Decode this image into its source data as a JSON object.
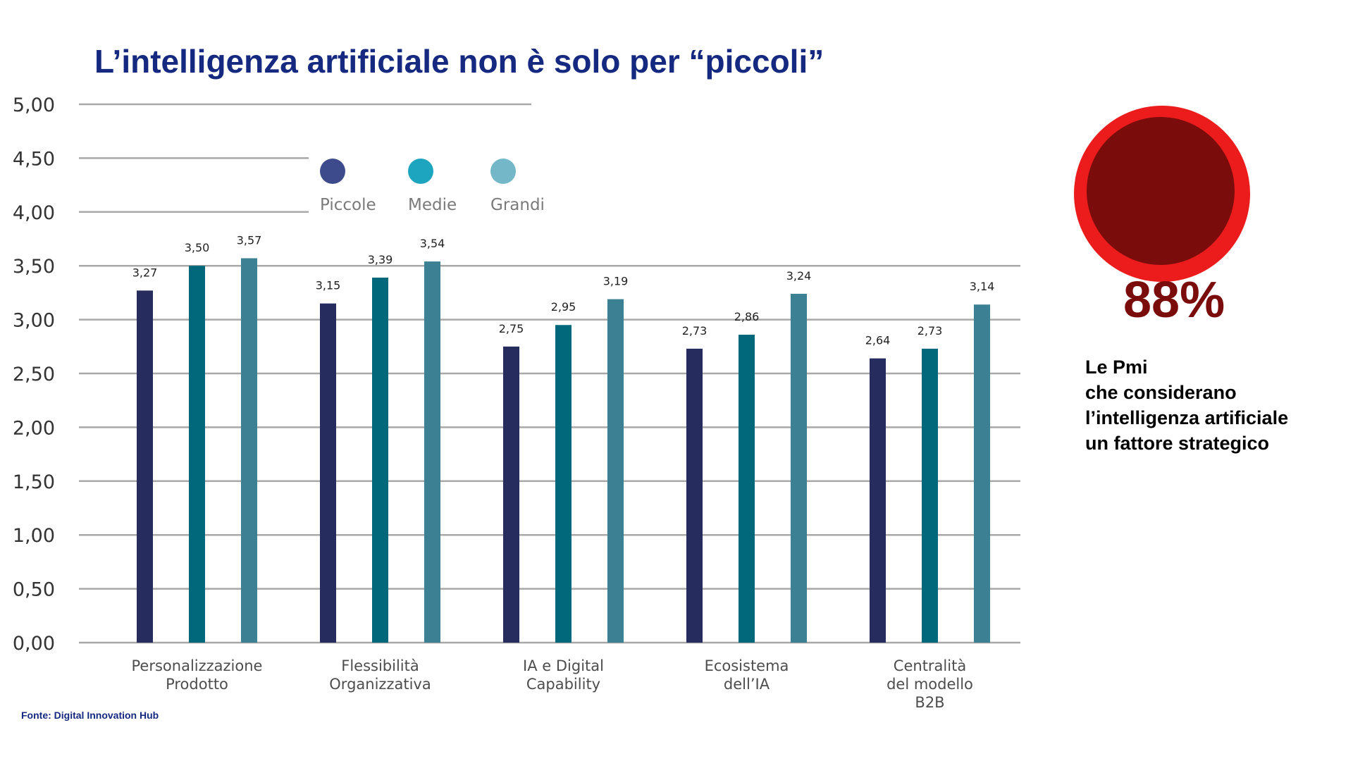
{
  "title": "L’intelligenza artificiale non è solo per “piccoli”",
  "source": "Fonte: Digital Innovation Hub",
  "stat": {
    "value": "88%",
    "caption_lines": [
      "Le Pmi",
      "che considerano",
      "l’intelligenza artificiale",
      "un fattore strategico"
    ]
  },
  "colors": {
    "title": "#14297f",
    "badge_outer": "#ec1c1c",
    "badge_inner": "#7a0c0c",
    "legend_piccole": "#3d4b8c",
    "legend_medie": "#1da4bf",
    "legend_grandi": "#74b7c9",
    "bar_piccole": "#262c5d",
    "bar_medie": "#00687a",
    "bar_grandi": "#3c8193"
  },
  "chart_data": {
    "type": "bar",
    "title": "",
    "xlabel": "",
    "ylabel": "",
    "ylim": [
      0,
      5
    ],
    "yticks": [
      "0,00",
      "0,50",
      "1,00",
      "1,50",
      "2,00",
      "2,50",
      "3,00",
      "3,50",
      "4,00",
      "4,50",
      "5,00"
    ],
    "grid": true,
    "legend_position": "top",
    "categories": [
      [
        "Personalizzazione",
        "Prodotto"
      ],
      [
        "Flessibilità",
        "Organizzativa"
      ],
      [
        "IA e Digital",
        "Capability"
      ],
      [
        "Ecosistema",
        "dell’IA"
      ],
      [
        "Centralità",
        "del modello",
        "B2B"
      ]
    ],
    "series": [
      {
        "name": "Piccole",
        "values": [
          3.27,
          3.15,
          2.75,
          2.73,
          2.64
        ],
        "labels": [
          "3,27",
          "3,15",
          "2,75",
          "2,73",
          "2,64"
        ]
      },
      {
        "name": "Medie",
        "values": [
          3.5,
          3.39,
          2.95,
          2.86,
          2.73
        ],
        "labels": [
          "3,50",
          "3,39",
          "2,95",
          "2,86",
          "2,73"
        ]
      },
      {
        "name": "Grandi",
        "values": [
          3.57,
          3.54,
          3.19,
          3.24,
          3.14
        ],
        "labels": [
          "3,57",
          "3,54",
          "3,19",
          "3,24",
          "3,14"
        ]
      }
    ]
  }
}
